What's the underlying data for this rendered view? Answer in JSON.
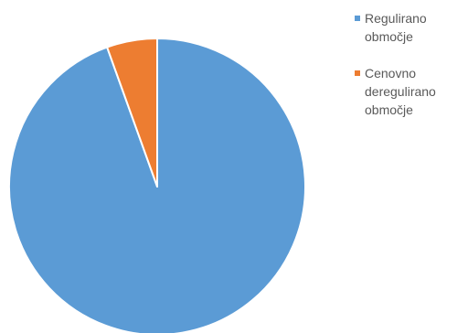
{
  "chart_data": {
    "type": "pie",
    "title": "",
    "legend_position": "right",
    "slices": [
      {
        "label": "Regulirano\nobmočje",
        "value": 94.5,
        "color": "#5B9BD5"
      },
      {
        "label": "Cenovno\nderegulirano\nobmočje",
        "value": 5.5,
        "color": "#ED7D31"
      }
    ]
  }
}
